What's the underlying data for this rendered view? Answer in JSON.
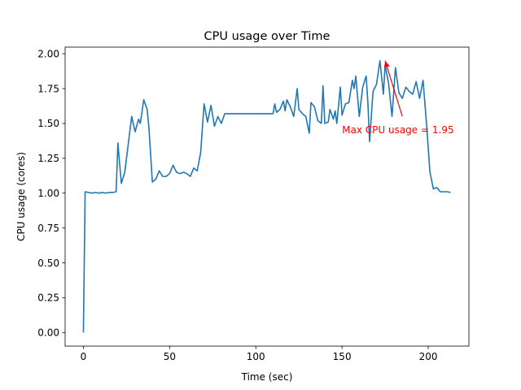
{
  "chart_data": {
    "type": "line",
    "title": "CPU usage over Time",
    "xlabel": "Time (sec)",
    "ylabel": "CPU usage (cores)",
    "xlim": [
      -10.6,
      223.6
    ],
    "ylim": [
      -0.0975,
      2.0475
    ],
    "xticks": [
      0,
      50,
      100,
      150,
      200
    ],
    "xtick_labels": [
      "0",
      "50",
      "100",
      "150",
      "200"
    ],
    "yticks": [
      0.0,
      0.25,
      0.5,
      0.75,
      1.0,
      1.25,
      1.5,
      1.75,
      2.0
    ],
    "ytick_labels": [
      "0.00",
      "0.25",
      "0.50",
      "0.75",
      "1.00",
      "1.25",
      "1.50",
      "1.75",
      "2.00"
    ],
    "grid": false,
    "series": [
      {
        "color": "#1f77b4",
        "x": [
          0,
          1,
          3,
          5,
          7,
          9,
          11,
          13,
          15,
          17,
          19,
          20,
          22,
          24,
          26,
          28,
          30,
          32,
          33,
          35,
          37,
          38,
          40,
          42,
          44,
          46,
          48,
          50,
          52,
          54,
          56,
          58,
          60,
          62,
          64,
          66,
          68,
          70,
          72,
          74,
          76,
          78,
          80,
          82,
          110,
          111,
          112,
          114,
          116,
          117,
          118,
          120,
          122,
          124,
          125,
          127,
          129,
          131,
          132,
          134,
          136,
          138,
          139,
          140,
          142,
          143,
          145,
          146,
          147,
          149,
          150,
          152,
          154,
          156,
          157,
          158,
          160,
          162,
          164,
          165,
          166,
          168,
          170,
          172,
          174,
          175,
          177,
          179,
          181,
          183,
          185,
          187,
          189,
          191,
          193,
          195,
          197,
          199,
          201,
          203,
          205,
          207,
          209,
          211,
          213
        ],
        "values": [
          0.0,
          1.01,
          1.005,
          1.0,
          1.005,
          1.0,
          1.005,
          1.0,
          1.005,
          1.005,
          1.01,
          1.36,
          1.07,
          1.15,
          1.35,
          1.55,
          1.44,
          1.53,
          1.5,
          1.67,
          1.6,
          1.47,
          1.08,
          1.1,
          1.16,
          1.12,
          1.12,
          1.14,
          1.2,
          1.15,
          1.14,
          1.15,
          1.14,
          1.12,
          1.18,
          1.16,
          1.29,
          1.64,
          1.51,
          1.63,
          1.48,
          1.55,
          1.5,
          1.57,
          1.57,
          1.64,
          1.58,
          1.6,
          1.66,
          1.59,
          1.67,
          1.62,
          1.55,
          1.75,
          1.6,
          1.57,
          1.55,
          1.43,
          1.65,
          1.62,
          1.52,
          1.5,
          1.77,
          1.5,
          1.51,
          1.6,
          1.53,
          1.59,
          1.5,
          1.76,
          1.56,
          1.64,
          1.65,
          1.81,
          1.75,
          1.84,
          1.55,
          1.76,
          1.84,
          1.65,
          1.37,
          1.73,
          1.78,
          1.95,
          1.71,
          1.92,
          1.79,
          1.55,
          1.9,
          1.72,
          1.68,
          1.76,
          1.73,
          1.71,
          1.8,
          1.68,
          1.81,
          1.5,
          1.15,
          1.03,
          1.04,
          1.01,
          1.01,
          1.01,
          1.005
        ]
      }
    ],
    "annotation": {
      "text": "Max CPU usage = 1.95",
      "color": "#ff0000",
      "point": [
        175,
        1.95
      ],
      "text_at": [
        150,
        1.455
      ],
      "arrow_tail": [
        185,
        1.55
      ]
    }
  }
}
